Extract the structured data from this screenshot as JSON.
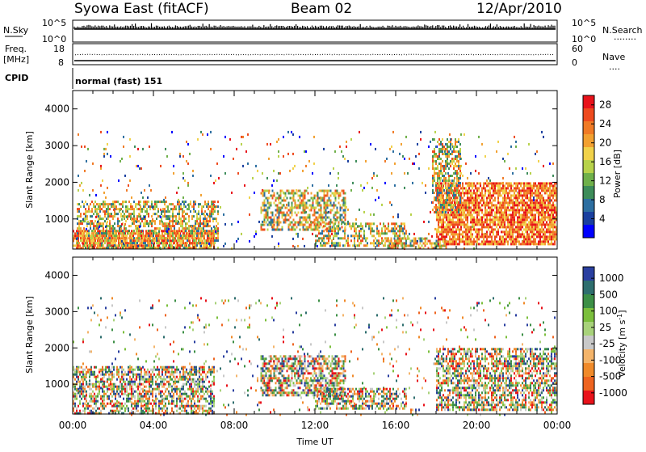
{
  "header": {
    "station": "Syowa East (fitACF)",
    "beam": "Beam 02",
    "date": "12/Apr/2010"
  },
  "noise_panel": {
    "left_label": "N.Sky",
    "left_ticks": [
      "10^5",
      "10^0"
    ],
    "right_ticks": [
      "10^5",
      "10^0"
    ],
    "right_label": "N.Search",
    "legend_dots": "........"
  },
  "freq_panel": {
    "left_label_line1": "Freq.",
    "left_label_line2": "[MHz]",
    "left_ticks": [
      "18",
      "8"
    ],
    "right_ticks": [
      "60",
      "0"
    ],
    "right_label": "Nave",
    "legend_dots": "...."
  },
  "cpid": {
    "label": "CPID",
    "value": "normal (fast) 151"
  },
  "chart_data": [
    {
      "type": "heatmap",
      "panel": "power",
      "xlabel": "Time UT",
      "ylabel": "Slant Range [km]",
      "x_ticks": [
        "00:00",
        "04:00",
        "08:00",
        "12:00",
        "16:00",
        "20:00",
        "00:00"
      ],
      "x_range_hours": [
        0,
        24
      ],
      "y_ticks": [
        1000,
        2000,
        3000,
        4000
      ],
      "ylim": [
        180,
        4500
      ],
      "colorbar": {
        "label": "Power [dB]",
        "ticks": [
          4,
          8,
          12,
          16,
          20,
          24,
          28
        ],
        "range": [
          0,
          30
        ],
        "colors": [
          "#0000ff",
          "#1a3f9f",
          "#2c6ea0",
          "#3d8c5a",
          "#6fb04a",
          "#b7d24a",
          "#f1d24a",
          "#f2a030",
          "#f07a25",
          "#ee4a1e",
          "#e8121a"
        ]
      },
      "echo_regions": [
        {
          "t0": 0.0,
          "t1": 7.0,
          "r0": 180,
          "r1": 700,
          "level": "high"
        },
        {
          "t0": 0.2,
          "t1": 7.2,
          "r0": 180,
          "r1": 1500,
          "level": "medium"
        },
        {
          "t0": 0.0,
          "t1": 24.0,
          "r0": 180,
          "r1": 3400,
          "level": "sparse"
        },
        {
          "t0": 9.3,
          "t1": 13.5,
          "r0": 700,
          "r1": 1800,
          "level": "medium"
        },
        {
          "t0": 12.0,
          "t1": 16.5,
          "r0": 300,
          "r1": 900,
          "level": "medium"
        },
        {
          "t0": 15.5,
          "t1": 18.5,
          "r0": 200,
          "r1": 500,
          "level": "medium"
        },
        {
          "t0": 18.0,
          "t1": 24.0,
          "r0": 300,
          "r1": 2000,
          "level": "high"
        },
        {
          "t0": 17.8,
          "t1": 19.2,
          "r0": 1200,
          "r1": 3200,
          "level": "medium"
        }
      ]
    },
    {
      "type": "heatmap",
      "panel": "velocity",
      "xlabel": "Time UT",
      "ylabel": "Slant Range [km]",
      "x_ticks": [
        "00:00",
        "04:00",
        "08:00",
        "12:00",
        "16:00",
        "20:00",
        "00:00"
      ],
      "x_range_hours": [
        0,
        24
      ],
      "y_ticks": [
        1000,
        2000,
        3000,
        4000
      ],
      "ylim": [
        180,
        4500
      ],
      "colorbar": {
        "label": "Velocity [m s^-1]",
        "ticks": [
          1000,
          500,
          100,
          25,
          -25,
          -100,
          -500,
          -1000
        ],
        "colors": [
          "#2a3fa0",
          "#2e6e6e",
          "#3c8f46",
          "#7bbf3c",
          "#a8d27a",
          "#c8c8c8",
          "#f4b46a",
          "#f08a2a",
          "#ee6420",
          "#e8121a"
        ]
      },
      "echo_regions": [
        {
          "t0": 0.0,
          "t1": 7.0,
          "r0": 180,
          "r1": 1500,
          "level": "mixed"
        },
        {
          "t0": 0.0,
          "t1": 24.0,
          "r0": 180,
          "r1": 3400,
          "level": "sparse"
        },
        {
          "t0": 9.3,
          "t1": 13.5,
          "r0": 700,
          "r1": 1800,
          "level": "mixed"
        },
        {
          "t0": 12.0,
          "t1": 16.5,
          "r0": 300,
          "r1": 900,
          "level": "mixed"
        },
        {
          "t0": 18.0,
          "t1": 24.0,
          "r0": 300,
          "r1": 2000,
          "level": "mixed"
        }
      ]
    }
  ]
}
